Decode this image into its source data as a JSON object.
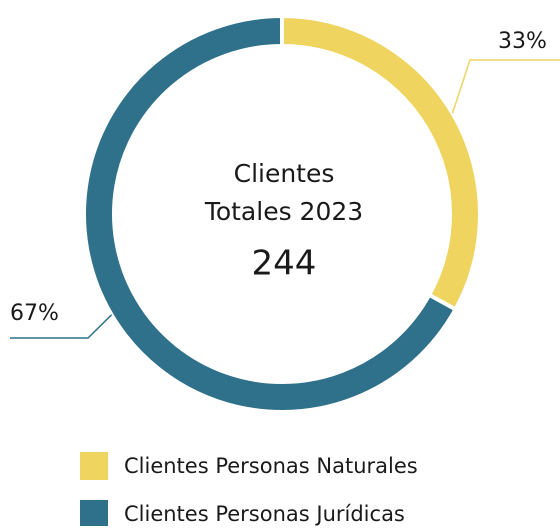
{
  "chart_data": {
    "type": "pie",
    "center_title": [
      "Clientes",
      "Totales 2023"
    ],
    "total": 244,
    "categories": [
      "Clientes Personas Naturales",
      "Clientes Personas Jurídicas"
    ],
    "values": [
      33,
      67
    ],
    "value_labels": [
      "33%",
      "67%"
    ],
    "colors": [
      "#f0d460",
      "#2f718a"
    ]
  }
}
